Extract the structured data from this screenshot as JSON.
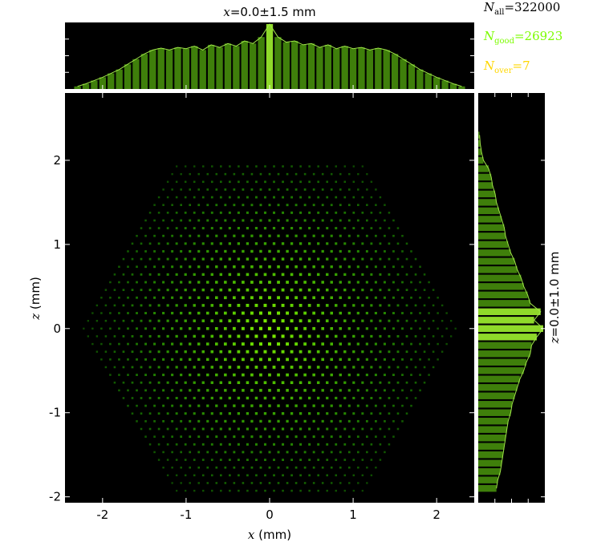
{
  "chart_data": {
    "type": "heatmap",
    "main": {
      "xlabel_var": "x",
      "xlabel_unit": " (mm)",
      "ylabel_var": "z",
      "ylabel_unit": " (mm)",
      "xlim": [
        -2.45,
        2.45
      ],
      "ylim": [
        -2.07,
        2.8
      ],
      "xticks": [
        -2,
        -1,
        0,
        1,
        2
      ],
      "xtick_labels": [
        "-2",
        "-1",
        "0",
        "1",
        "2"
      ],
      "yticks": [
        -2,
        -1,
        0,
        1,
        2
      ],
      "ytick_labels": [
        "-2",
        "-1",
        "0",
        "1",
        "2"
      ],
      "spot_pitch_mm": 0.106,
      "hexagon_vertices_mm": [
        [
          1.15,
          2.0
        ],
        [
          2.3,
          0.0
        ],
        [
          1.15,
          -2.0
        ],
        [
          -1.15,
          -2.0
        ],
        [
          -2.3,
          0.0
        ],
        [
          -1.15,
          2.0
        ]
      ]
    },
    "top_histogram": {
      "title_var": "x",
      "title_text": "=0.0±1.5 mm",
      "bin_centers_mm": [
        -2.3,
        -2.2,
        -2.1,
        -2.0,
        -1.9,
        -1.8,
        -1.7,
        -1.6,
        -1.5,
        -1.4,
        -1.3,
        -1.2,
        -1.1,
        -1.0,
        -0.9,
        -0.8,
        -0.7,
        -0.6,
        -0.5,
        -0.4,
        -0.3,
        -0.2,
        -0.1,
        0.0,
        0.1,
        0.2,
        0.3,
        0.4,
        0.5,
        0.6,
        0.7,
        0.8,
        0.9,
        1.0,
        1.1,
        1.2,
        1.3,
        1.4,
        1.5,
        1.6,
        1.7,
        1.8,
        1.9,
        2.0,
        2.1,
        2.2,
        2.3
      ],
      "relative_counts": [
        0.04,
        0.08,
        0.13,
        0.18,
        0.24,
        0.3,
        0.38,
        0.46,
        0.54,
        0.6,
        0.63,
        0.6,
        0.64,
        0.62,
        0.66,
        0.6,
        0.68,
        0.64,
        0.7,
        0.66,
        0.74,
        0.7,
        0.8,
        1.0,
        0.8,
        0.72,
        0.74,
        0.68,
        0.7,
        0.64,
        0.68,
        0.62,
        0.66,
        0.62,
        0.64,
        0.6,
        0.63,
        0.6,
        0.54,
        0.46,
        0.38,
        0.3,
        0.24,
        0.18,
        0.13,
        0.08,
        0.04
      ]
    },
    "right_histogram": {
      "label_var": "z",
      "label_text": "=0.0±1.0 mm",
      "bin_centers_mm": [
        -1.9,
        -1.8,
        -1.7,
        -1.6,
        -1.5,
        -1.4,
        -1.3,
        -1.2,
        -1.1,
        -1.0,
        -0.9,
        -0.8,
        -0.7,
        -0.6,
        -0.5,
        -0.4,
        -0.3,
        -0.2,
        -0.1,
        0.0,
        0.1,
        0.2,
        0.3,
        0.4,
        0.5,
        0.6,
        0.7,
        0.8,
        0.9,
        1.0,
        1.1,
        1.2,
        1.3,
        1.4,
        1.5,
        1.6,
        1.7,
        1.8,
        1.9,
        2.0,
        2.1,
        2.2,
        2.3
      ],
      "relative_counts": [
        0.28,
        0.3,
        0.34,
        0.36,
        0.38,
        0.4,
        0.42,
        0.44,
        0.46,
        0.5,
        0.52,
        0.56,
        0.6,
        0.64,
        0.7,
        0.74,
        0.8,
        0.82,
        0.9,
        1.0,
        0.86,
        0.96,
        0.8,
        0.76,
        0.7,
        0.66,
        0.6,
        0.56,
        0.5,
        0.46,
        0.42,
        0.4,
        0.36,
        0.32,
        0.28,
        0.26,
        0.22,
        0.2,
        0.16,
        0.08,
        0.05,
        0.03,
        0.02
      ]
    }
  },
  "stats": {
    "all": {
      "sym": "N",
      "sub": "all",
      "value": "=322000"
    },
    "good": {
      "sym": "N",
      "sub": "good",
      "value": "=26923"
    },
    "over": {
      "sym": "N",
      "sub": "over",
      "value": "=7"
    }
  },
  "colors": {
    "good": "#7cfc00",
    "over": "#ffd700",
    "hist_bar": "#3f7f0b",
    "hist_bar_bright": "#8fd92a",
    "hist_line": "#a0e64a"
  }
}
